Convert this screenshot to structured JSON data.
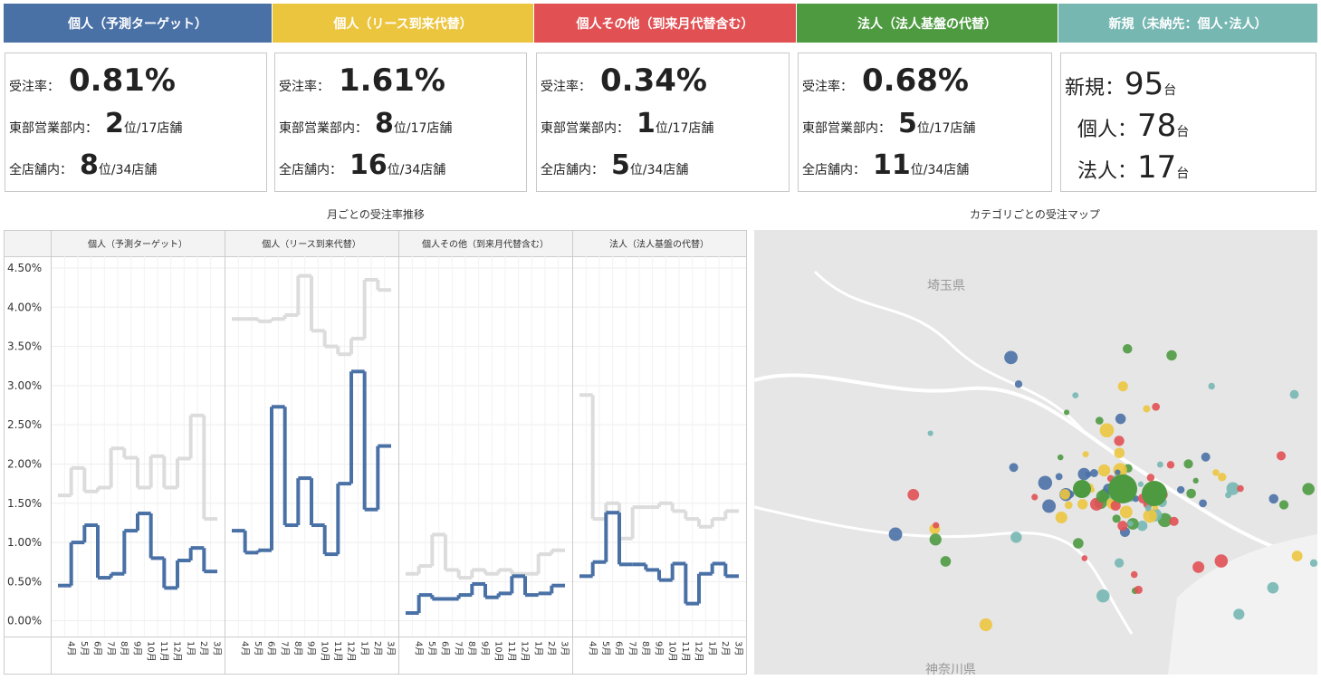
{
  "cards": [
    {
      "header": "個人（予測ターゲット）",
      "color": "#4a71a6",
      "rate_label": "受注率：",
      "rate": "0.81%",
      "east_label": "東部営業部内：",
      "east_rank": "2",
      "east_unit": "位/17店舗",
      "all_label": "全店舗内：",
      "all_rank": "8",
      "all_unit": "位/34店舗"
    },
    {
      "header": "個人（リース到来代替）",
      "color": "#ecc53f",
      "rate_label": "受注率：",
      "rate": "1.61%",
      "east_label": "東部営業部内：",
      "east_rank": "8",
      "east_unit": "位/17店舗",
      "all_label": "全店舗内：",
      "all_rank": "16",
      "all_unit": "位/34店舗"
    },
    {
      "header": "個人その他（到来月代替含む）",
      "color": "#e15154",
      "rate_label": "受注率：",
      "rate": "0.34%",
      "east_label": "東部営業部内：",
      "east_rank": "1",
      "east_unit": "位/17店舗",
      "all_label": "全店舗内：",
      "all_rank": "5",
      "all_unit": "位/34店舗"
    },
    {
      "header": "法人（法人基盤の代替）",
      "color": "#4e9a41",
      "rate_label": "受注率：",
      "rate": "0.68%",
      "east_label": "東部営業部内：",
      "east_rank": "5",
      "east_unit": "位/17店舗",
      "all_label": "全店舗内：",
      "all_rank": "11",
      "all_unit": "位/34店舗"
    }
  ],
  "new_card": {
    "header": "新規（未納先：個人･法人）",
    "color": "#76b7b2",
    "rows": [
      {
        "label": "新規：",
        "value": "95",
        "unit": "台"
      },
      {
        "label": "個人：",
        "value": "78",
        "unit": "台"
      },
      {
        "label": "法人：",
        "value": "17",
        "unit": "台"
      }
    ]
  },
  "chart_section_title": "月ごとの受注率推移",
  "map": {
    "title": "カテゴリごとの受注マップ",
    "labels": [
      "埼玉県",
      "神奈川県"
    ]
  },
  "chart_data": [
    {
      "type": "step",
      "title": "個人（予測ターゲット）",
      "categories": [
        "4月",
        "5月",
        "6月",
        "7月",
        "8月",
        "9月",
        "10月",
        "11月",
        "12月",
        "1月",
        "2月",
        "3月"
      ],
      "ylim": [
        -0.2,
        4.65
      ],
      "yticks": [
        {
          "value": 0,
          "label": "0.00%"
        },
        {
          "value": 0.5,
          "label": "0.50%"
        },
        {
          "value": 1,
          "label": "1.00%"
        },
        {
          "value": 1.5,
          "label": "1.50%"
        },
        {
          "value": 2,
          "label": "2.00%"
        },
        {
          "value": 2.5,
          "label": "2.50%"
        },
        {
          "value": 3,
          "label": "3.00%"
        },
        {
          "value": 3.5,
          "label": "3.50%"
        },
        {
          "value": 4,
          "label": "4.00%"
        },
        {
          "value": 4.5,
          "label": "4.50%"
        }
      ],
      "series": [
        {
          "color": "#dcdcdc",
          "values": [
            1.6,
            1.95,
            1.65,
            1.7,
            2.2,
            2.08,
            1.7,
            2.1,
            1.7,
            2.07,
            2.62,
            1.3
          ]
        },
        {
          "color": "#4a71a6",
          "values": [
            0.45,
            1.0,
            1.22,
            0.55,
            0.6,
            1.15,
            1.37,
            0.8,
            0.42,
            0.77,
            0.93,
            0.63
          ]
        }
      ]
    },
    {
      "type": "step",
      "title": "個人（リース到来代替）",
      "categories": [
        "4月",
        "5月",
        "6月",
        "7月",
        "8月",
        "9月",
        "10月",
        "11月",
        "12月",
        "1月",
        "2月",
        "3月"
      ],
      "ylim": [
        -0.2,
        4.65
      ],
      "series": [
        {
          "color": "#dcdcdc",
          "values": [
            3.85,
            3.85,
            3.82,
            3.85,
            3.9,
            4.4,
            3.7,
            3.5,
            3.4,
            3.6,
            4.35,
            4.22
          ]
        },
        {
          "color": "#4a71a6",
          "values": [
            1.15,
            0.87,
            0.9,
            2.73,
            1.22,
            1.82,
            1.22,
            0.85,
            1.75,
            3.18,
            1.42,
            2.23
          ]
        }
      ]
    },
    {
      "type": "step",
      "title": "個人その他（到来月代替含む）",
      "categories": [
        "4月",
        "5月",
        "6月",
        "7月",
        "8月",
        "9月",
        "10月",
        "11月",
        "12月",
        "1月",
        "2月",
        "3月"
      ],
      "ylim": [
        -0.2,
        4.65
      ],
      "series": [
        {
          "color": "#dcdcdc",
          "values": [
            0.6,
            0.7,
            1.1,
            0.65,
            0.55,
            0.65,
            0.6,
            0.65,
            0.6,
            0.6,
            0.85,
            0.9
          ]
        },
        {
          "color": "#4a71a6",
          "values": [
            0.1,
            0.33,
            0.28,
            0.28,
            0.33,
            0.47,
            0.3,
            0.35,
            0.57,
            0.33,
            0.35,
            0.45
          ]
        }
      ]
    },
    {
      "type": "step",
      "title": "法人（法人基盤の代替）",
      "categories": [
        "4月",
        "5月",
        "6月",
        "7月",
        "8月",
        "9月",
        "10月",
        "11月",
        "12月",
        "1月",
        "2月",
        "3月"
      ],
      "ylim": [
        -0.2,
        4.65
      ],
      "series": [
        {
          "color": "#dcdcdc",
          "values": [
            2.88,
            1.3,
            1.5,
            1.05,
            1.45,
            1.45,
            1.5,
            1.4,
            1.3,
            1.2,
            1.3,
            1.4
          ]
        },
        {
          "color": "#4a71a6",
          "values": [
            0.57,
            0.75,
            1.38,
            0.72,
            0.72,
            0.65,
            0.52,
            0.73,
            0.22,
            0.6,
            0.73,
            0.57
          ]
        }
      ]
    }
  ]
}
